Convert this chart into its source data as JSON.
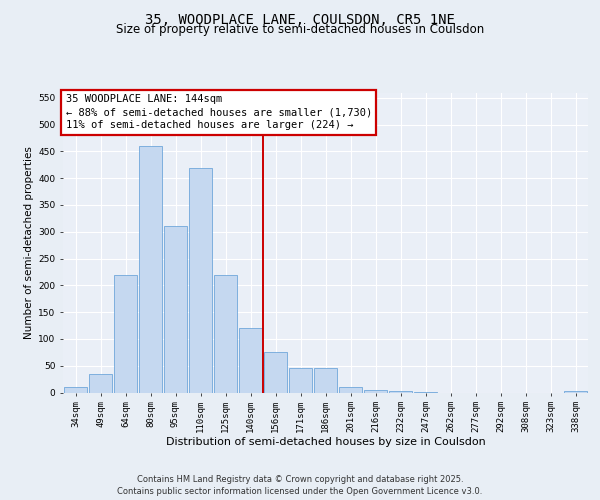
{
  "title_line1": "35, WOODPLACE LANE, COULSDON, CR5 1NE",
  "title_line2": "Size of property relative to semi-detached houses in Coulsdon",
  "xlabel": "Distribution of semi-detached houses by size in Coulsdon",
  "ylabel": "Number of semi-detached properties",
  "annotation_title": "35 WOODPLACE LANE: 144sqm",
  "annotation_line2": "← 88% of semi-detached houses are smaller (1,730)",
  "annotation_line3": "11% of semi-detached houses are larger (224) →",
  "footer_line1": "Contains HM Land Registry data © Crown copyright and database right 2025.",
  "footer_line2": "Contains public sector information licensed under the Open Government Licence v3.0.",
  "bar_labels": [
    "34sqm",
    "49sqm",
    "64sqm",
    "80sqm",
    "95sqm",
    "110sqm",
    "125sqm",
    "140sqm",
    "156sqm",
    "171sqm",
    "186sqm",
    "201sqm",
    "216sqm",
    "232sqm",
    "247sqm",
    "262sqm",
    "277sqm",
    "292sqm",
    "308sqm",
    "323sqm",
    "338sqm"
  ],
  "bar_values": [
    10,
    35,
    220,
    460,
    310,
    420,
    220,
    120,
    75,
    45,
    45,
    10,
    5,
    2,
    1,
    0,
    0,
    0,
    0,
    0,
    2
  ],
  "bar_color": "#c5d8f0",
  "bar_edge_color": "#5b9bd5",
  "vline_x": 7.5,
  "vline_color": "#cc0000",
  "ylim_max": 560,
  "ytick_step": 50,
  "fig_bg_color": "#e8eef5",
  "plot_bg_color": "#eaeff7",
  "grid_color": "#ffffff",
  "annotation_bg": "#ffffff",
  "annotation_border": "#cc0000",
  "title_fontsize": 10,
  "subtitle_fontsize": 8.5,
  "xlabel_fontsize": 8,
  "ylabel_fontsize": 7.5,
  "tick_fontsize": 6.5,
  "annotation_fontsize": 7.5,
  "footer_fontsize": 6
}
